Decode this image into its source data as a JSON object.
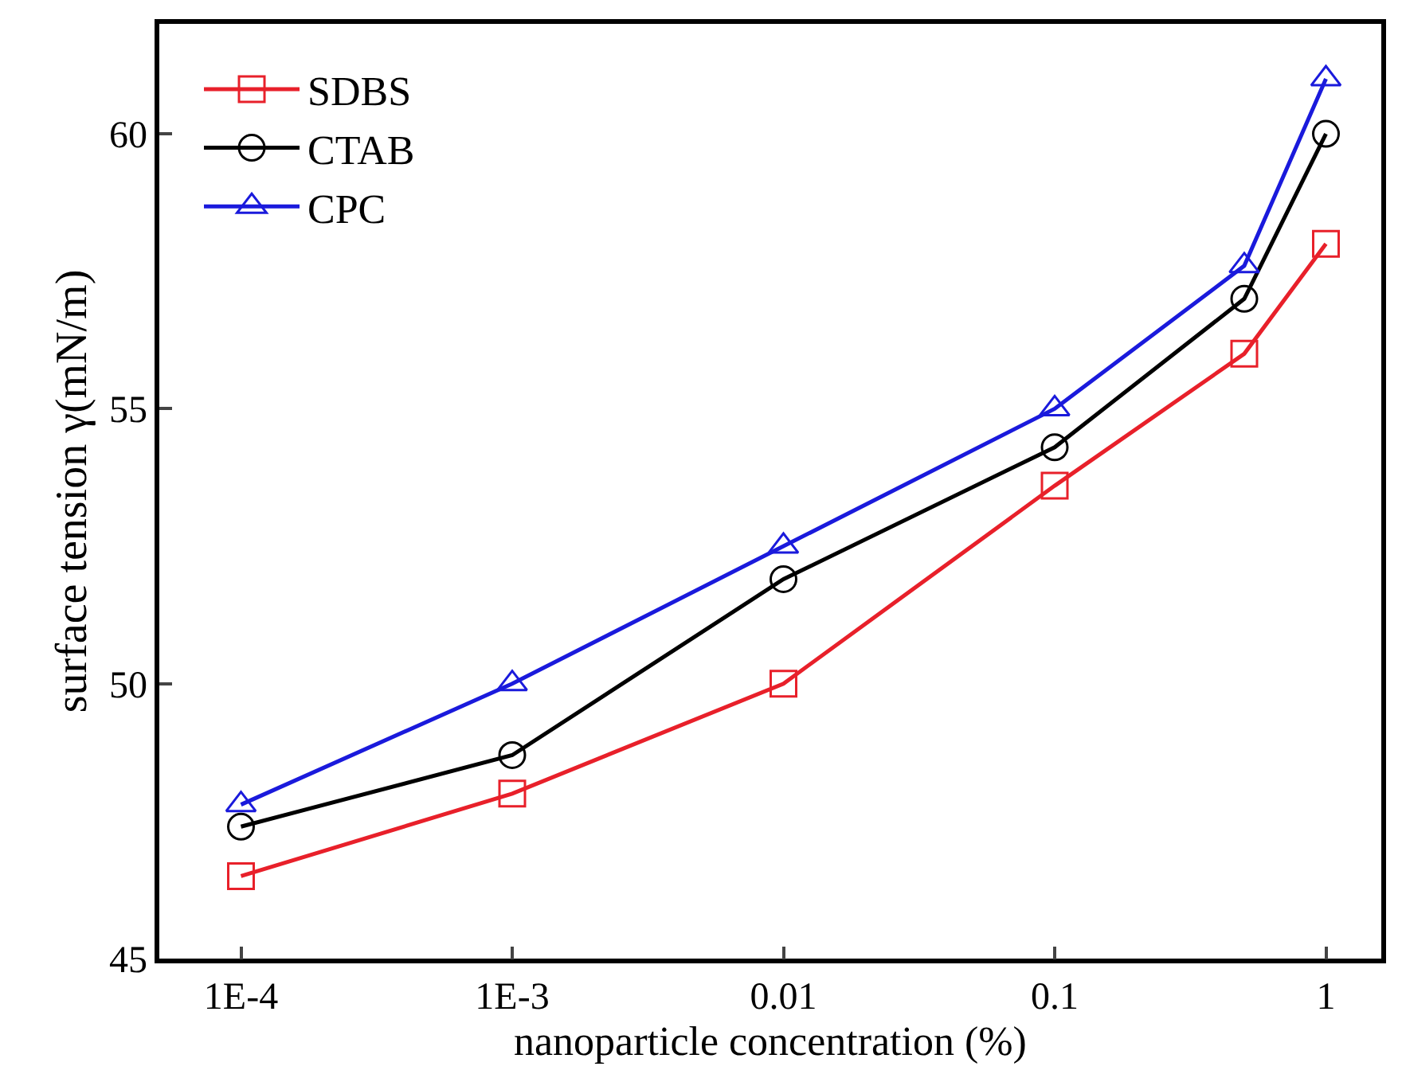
{
  "chart_data": {
    "type": "line",
    "xlabel": "nanoparticle concentration (%)",
    "ylabel": "surface tension γ(mN/m)",
    "x": [
      0.0001,
      0.001,
      0.01,
      0.1,
      0.5,
      1
    ],
    "log": "x",
    "xlim": [
      5e-05,
      1.6
    ],
    "ylim": [
      45,
      62
    ],
    "xticks": [
      {
        "value": 0.0001,
        "label": "1E-4"
      },
      {
        "value": 0.001,
        "label": "1E-3"
      },
      0.01,
      0.1,
      1
    ],
    "yticks": [
      45,
      50,
      55,
      60
    ],
    "legend": "top left",
    "series": [
      {
        "name": "SDBS",
        "color": "#e8202a",
        "marker": "square",
        "values": [
          46.5,
          48.0,
          50.0,
          53.6,
          56.0,
          58.0
        ]
      },
      {
        "name": "CTAB",
        "color": "#000000",
        "marker": "circle",
        "values": [
          47.4,
          48.7,
          51.9,
          54.3,
          57.0,
          60.0
        ]
      },
      {
        "name": "CPC",
        "color": "#1a1adc",
        "marker": "triangle",
        "values": [
          47.8,
          50.0,
          52.5,
          55.0,
          57.6,
          61.0
        ]
      }
    ]
  }
}
